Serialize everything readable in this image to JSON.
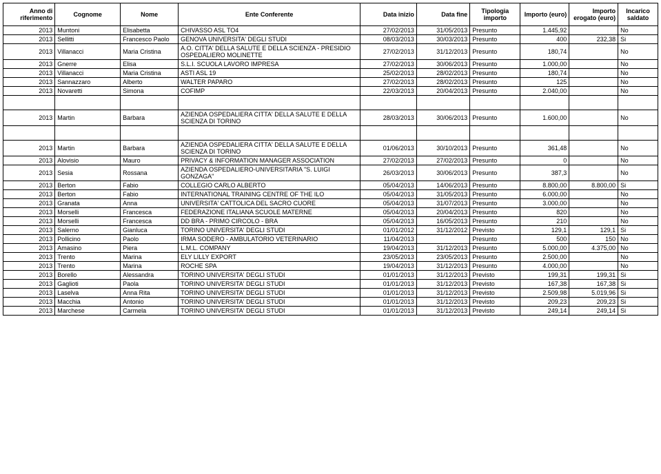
{
  "headers": {
    "anno": "Anno di riferimento",
    "cognome": "Cognome",
    "nome": "Nome",
    "ente": "Ente Conferente",
    "data_inizio": "Data inizio",
    "data_fine": "Data fine",
    "tipologia": "Tipologia importo",
    "importo": "Importo (euro)",
    "erogato": "Importo erogato (euro)",
    "saldato": "Incarico saldato"
  },
  "rows": [
    {
      "anno": "2013",
      "cognome": "Muntoni",
      "nome": "Elisabetta",
      "ente": "CHIVASSO ASL TO4",
      "inizio": "27/02/2013",
      "fine": "31/05/2013",
      "tip": "Presunto",
      "imp": "1.445,92",
      "erog": "",
      "sal": "No"
    },
    {
      "anno": "2013",
      "cognome": "Sellitti",
      "nome": "Francesco Paolo",
      "ente": "GENOVA UNIVERSITA' DEGLI STUDI",
      "inizio": "08/03/2013",
      "fine": "30/03/2013",
      "tip": "Presunto",
      "imp": "400",
      "erog": "232,38",
      "sal": "Si"
    },
    {
      "anno": "2013",
      "cognome": "Villanacci",
      "nome": "Maria Cristina",
      "ente": "A.O. CITTA' DELLA SALUTE E DELLA SCIENZA - PRESIDIO OSPEDALIERO MOLINETTE",
      "inizio": "27/02/2013",
      "fine": "31/12/2013",
      "tip": "Presunto",
      "imp": "180,74",
      "erog": "",
      "sal": "No"
    },
    {
      "anno": "2013",
      "cognome": "Gnerre",
      "nome": "Elisa",
      "ente": "S.L.I. SCUOLA LAVORO IMPRESA",
      "inizio": "27/02/2013",
      "fine": "30/06/2013",
      "tip": "Presunto",
      "imp": "1.000,00",
      "erog": "",
      "sal": "No"
    },
    {
      "anno": "2013",
      "cognome": "Villanacci",
      "nome": "Maria Cristina",
      "ente": "ASTI ASL 19",
      "inizio": "25/02/2013",
      "fine": "28/02/2013",
      "tip": "Presunto",
      "imp": "180,74",
      "erog": "",
      "sal": "No"
    },
    {
      "anno": "2013",
      "cognome": "Sannazzaro",
      "nome": "Alberto",
      "ente": "WALTER PAPARO",
      "inizio": "27/02/2013",
      "fine": "28/02/2013",
      "tip": "Presunto",
      "imp": "125",
      "erog": "",
      "sal": "No"
    },
    {
      "anno": "2013",
      "cognome": "Novaretti",
      "nome": "Simona",
      "ente": "COFIMP",
      "inizio": "22/03/2013",
      "fine": "20/04/2013",
      "tip": "Presunto",
      "imp": "2.040,00",
      "erog": "",
      "sal": "No"
    },
    {
      "spacer": true
    },
    {
      "anno": "2013",
      "cognome": "Martin",
      "nome": "Barbara",
      "ente": "AZIENDA OSPEDALIERA CITTA' DELLA SALUTE E DELLA SCIENZA DI TORINO",
      "inizio": "28/03/2013",
      "fine": "30/06/2013",
      "tip": "Presunto",
      "imp": "1.600,00",
      "erog": "",
      "sal": "No"
    },
    {
      "spacer": true
    },
    {
      "anno": "2013",
      "cognome": "Martin",
      "nome": "Barbara",
      "ente": "AZIENDA OSPEDALIERA CITTA' DELLA SALUTE E DELLA SCIENZA DI TORINO",
      "inizio": "01/06/2013",
      "fine": "30/10/2013",
      "tip": "Presunto",
      "imp": "361,48",
      "erog": "",
      "sal": "No"
    },
    {
      "anno": "2013",
      "cognome": "Alovisio",
      "nome": "Mauro",
      "ente": "PRIVACY & INFORMATION MANAGER ASSOCIATION",
      "inizio": "27/02/2013",
      "fine": "27/02/2013",
      "tip": "Presunto",
      "imp": "0",
      "erog": "",
      "sal": "No"
    },
    {
      "anno": "2013",
      "cognome": "Sesia",
      "nome": "Rossana",
      "ente": "AZIENDA OSPEDALIERO-UNIVERSITARIA \"S. LUIGI GONZAGA\"",
      "inizio": "26/03/2013",
      "fine": "30/06/2013",
      "tip": "Presunto",
      "imp": "387,3",
      "erog": "",
      "sal": "No"
    },
    {
      "anno": "2013",
      "cognome": "Berton",
      "nome": "Fabio",
      "ente": "COLLEGIO CARLO ALBERTO",
      "inizio": "05/04/2013",
      "fine": "14/06/2013",
      "tip": "Presunto",
      "imp": "8.800,00",
      "erog": "8.800,00",
      "sal": "Si"
    },
    {
      "anno": "2013",
      "cognome": "Berton",
      "nome": "Fabio",
      "ente": "INTERNATIONAL TRAINING CENTRE OF THE ILO",
      "inizio": "05/04/2013",
      "fine": "31/05/2013",
      "tip": "Presunto",
      "imp": "6.000,00",
      "erog": "",
      "sal": "No"
    },
    {
      "anno": "2013",
      "cognome": "Granata",
      "nome": "Anna",
      "ente": "UNIVERSITA' CATTOLICA DEL SACRO CUORE",
      "inizio": "05/04/2013",
      "fine": "31/07/2013",
      "tip": "Presunto",
      "imp": "3.000,00",
      "erog": "",
      "sal": "No"
    },
    {
      "anno": "2013",
      "cognome": "Morselli",
      "nome": "Francesca",
      "ente": "FEDERAZIONE ITALIANA SCUOLE MATERNE",
      "inizio": "05/04/2013",
      "fine": "20/04/2013",
      "tip": "Presunto",
      "imp": "820",
      "erog": "",
      "sal": "No"
    },
    {
      "anno": "2013",
      "cognome": "Morselli",
      "nome": "Francesca",
      "ente": "DD BRA - PRIMO CIRCOLO - BRA",
      "inizio": "05/04/2013",
      "fine": "16/05/2013",
      "tip": "Presunto",
      "imp": "210",
      "erog": "",
      "sal": "No"
    },
    {
      "anno": "2013",
      "cognome": "Salerno",
      "nome": "Gianluca",
      "ente": "TORINO UNIVERSITA' DEGLI STUDI",
      "inizio": "01/01/2012",
      "fine": "31/12/2012",
      "tip": "Previsto",
      "imp": "129,1",
      "erog": "129,1",
      "sal": "Si"
    },
    {
      "anno": "2013",
      "cognome": "Pollicino",
      "nome": "Paolo",
      "ente": "IRMA SODERO - AMBULATORIO VETERINARIO",
      "inizio": "11/04/2013",
      "fine": "",
      "tip": "Presunto",
      "imp": "500",
      "erog": "150",
      "sal": "No"
    },
    {
      "anno": "2013",
      "cognome": "Amasino",
      "nome": "Piera",
      "ente": "L.M.L. COMPANY",
      "inizio": "19/04/2013",
      "fine": "31/12/2013",
      "tip": "Presunto",
      "imp": "5.000,00",
      "erog": "4.375,00",
      "sal": "No"
    },
    {
      "anno": "2013",
      "cognome": "Trento",
      "nome": "Marina",
      "ente": "ELY LILLY EXPORT",
      "inizio": "23/05/2013",
      "fine": "23/05/2013",
      "tip": "Presunto",
      "imp": "2.500,00",
      "erog": "",
      "sal": "No"
    },
    {
      "anno": "2013",
      "cognome": "Trento",
      "nome": "Marina",
      "ente": "ROCHE SPA",
      "inizio": "19/04/2013",
      "fine": "31/12/2013",
      "tip": "Presunto",
      "imp": "4.000,00",
      "erog": "",
      "sal": "No"
    },
    {
      "anno": "2013",
      "cognome": "Borello",
      "nome": "Alessandra",
      "ente": "TORINO UNIVERSITA' DEGLI STUDI",
      "inizio": "01/01/2013",
      "fine": "31/12/2013",
      "tip": "Previsto",
      "imp": "199,31",
      "erog": "199,31",
      "sal": "Si"
    },
    {
      "anno": "2013",
      "cognome": "Gaglioti",
      "nome": "Paola",
      "ente": "TORINO UNIVERSITA' DEGLI STUDI",
      "inizio": "01/01/2013",
      "fine": "31/12/2013",
      "tip": "Previsto",
      "imp": "167,38",
      "erog": "167,38",
      "sal": "Si"
    },
    {
      "anno": "2013",
      "cognome": "Laselva",
      "nome": "Anna Rita",
      "ente": "TORINO UNIVERSITA' DEGLI STUDI",
      "inizio": "01/01/2013",
      "fine": "31/12/2013",
      "tip": "Previsto",
      "imp": "2.509,98",
      "erog": "5.019,96",
      "sal": "Si"
    },
    {
      "anno": "2013",
      "cognome": "Macchia",
      "nome": "Antonio",
      "ente": "TORINO UNIVERSITA' DEGLI STUDI",
      "inizio": "01/01/2013",
      "fine": "31/12/2013",
      "tip": "Previsto",
      "imp": "209,23",
      "erog": "209,23",
      "sal": "Si"
    },
    {
      "anno": "2013",
      "cognome": "Marchese",
      "nome": "Carmela",
      "ente": "TORINO UNIVERSITA' DEGLI STUDI",
      "inizio": "01/01/2013",
      "fine": "31/12/2013",
      "tip": "Previsto",
      "imp": "249,14",
      "erog": "249,14",
      "sal": "Si"
    }
  ]
}
